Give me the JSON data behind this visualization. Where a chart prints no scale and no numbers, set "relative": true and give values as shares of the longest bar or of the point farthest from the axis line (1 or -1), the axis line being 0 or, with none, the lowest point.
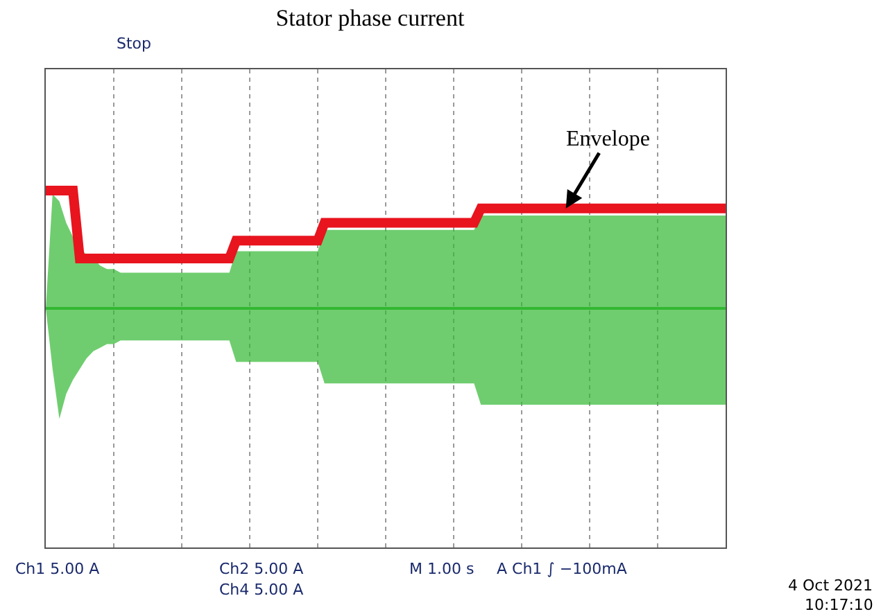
{
  "chart_data": {
    "type": "line",
    "title": "Stator phase current",
    "relative": true,
    "categories": [
      null,
      null,
      null,
      null,
      null,
      null,
      null,
      null,
      null,
      null,
      null,
      null,
      null,
      null,
      null,
      null,
      null,
      null,
      null,
      null,
      null,
      null,
      null,
      null,
      null,
      null,
      null,
      null,
      null,
      null,
      null,
      null,
      null,
      null,
      null,
      null,
      null,
      null,
      null,
      null,
      null,
      null,
      null,
      null,
      null,
      null,
      null,
      null,
      null,
      null,
      null,
      null,
      null,
      null,
      null,
      null,
      null,
      null,
      null,
      null,
      null,
      null,
      null,
      null,
      null,
      null,
      null,
      null,
      null,
      null,
      null,
      null,
      null,
      null,
      null,
      null,
      null,
      null,
      null,
      null,
      null,
      null,
      null,
      null,
      null,
      null,
      null,
      null,
      null,
      null,
      null,
      null,
      null,
      null,
      null,
      null,
      null,
      null,
      null,
      null,
      null
    ],
    "grid": "x",
    "series": [
      {
        "color": "#32b832",
        "values": [
          0.67,
          0.67,
          0.67,
          0.67,
          0.67,
          0.67,
          0.67,
          0.67,
          0.67,
          0.67,
          0.67,
          0.67,
          0.67,
          0.67,
          0.67,
          0.67,
          0.67,
          0.67,
          0.67,
          0.67,
          0.67,
          0.67,
          0.67,
          0.67,
          0.67,
          0.67,
          0.67,
          0.67,
          0.67,
          0.67,
          0.67,
          0.67,
          0.67,
          0.67,
          0.67,
          0.67,
          0.67,
          0.67,
          0.67,
          0.67,
          0.67,
          0.67,
          0.67,
          0.67,
          0.67,
          0.67,
          0.67,
          0.67,
          0.67,
          0.67,
          0.67,
          0.67,
          0.67,
          0.67,
          0.67,
          0.67,
          0.67,
          0.67,
          0.67,
          0.67,
          0.67,
          0.67,
          0.67,
          0.67,
          0.67,
          0.67,
          0.67,
          0.67,
          0.67,
          0.67,
          0.67,
          0.67,
          0.67,
          0.67,
          0.67,
          0.67,
          0.67,
          0.67,
          0.67,
          0.67,
          0.67,
          0.67,
          0.67,
          0.67,
          0.67,
          0.67,
          0.67,
          0.67,
          0.67,
          0.67,
          0.67,
          0.67,
          0.67,
          0.67,
          0.67,
          0.67,
          0.67,
          0.67,
          0.67,
          0.67,
          0.67
        ],
        "upper": [
          0.67,
          0.99,
          0.97,
          0.91,
          0.87,
          0.84,
          0.82,
          0.81,
          0.79,
          0.78,
          0.78,
          0.77,
          0.77,
          0.77,
          0.77,
          0.77,
          0.77,
          0.77,
          0.77,
          0.77,
          0.77,
          0.77,
          0.77,
          0.77,
          0.77,
          0.77,
          0.77,
          0.77,
          0.83,
          0.83,
          0.83,
          0.83,
          0.83,
          0.83,
          0.83,
          0.83,
          0.83,
          0.83,
          0.83,
          0.83,
          0.83,
          0.89,
          0.89,
          0.89,
          0.89,
          0.89,
          0.89,
          0.89,
          0.89,
          0.89,
          0.89,
          0.89,
          0.89,
          0.89,
          0.89,
          0.89,
          0.89,
          0.89,
          0.89,
          0.89,
          0.89,
          0.89,
          0.89,
          0.89,
          0.93,
          0.93,
          0.93,
          0.93,
          0.93,
          0.93,
          0.93,
          0.93,
          0.93,
          0.93,
          0.93,
          0.93,
          0.93,
          0.93,
          0.93,
          0.93,
          0.93,
          0.93,
          0.93,
          0.93,
          0.93,
          0.93,
          0.93,
          0.93,
          0.93,
          0.93,
          0.93,
          0.93,
          0.93,
          0.93,
          0.93,
          0.93,
          0.93,
          0.93,
          0.93,
          0.93,
          0.93
        ],
        "lower": [
          0.67,
          0.5,
          0.36,
          0.43,
          0.47,
          0.5,
          0.53,
          0.55,
          0.56,
          0.57,
          0.57,
          0.58,
          0.58,
          0.58,
          0.58,
          0.58,
          0.58,
          0.58,
          0.58,
          0.58,
          0.58,
          0.58,
          0.58,
          0.58,
          0.58,
          0.58,
          0.58,
          0.58,
          0.52,
          0.52,
          0.52,
          0.52,
          0.52,
          0.52,
          0.52,
          0.52,
          0.52,
          0.52,
          0.52,
          0.52,
          0.52,
          0.46,
          0.46,
          0.46,
          0.46,
          0.46,
          0.46,
          0.46,
          0.46,
          0.46,
          0.46,
          0.46,
          0.46,
          0.46,
          0.46,
          0.46,
          0.46,
          0.46,
          0.46,
          0.46,
          0.46,
          0.46,
          0.46,
          0.46,
          0.4,
          0.4,
          0.4,
          0.4,
          0.4,
          0.4,
          0.4,
          0.4,
          0.4,
          0.4,
          0.4,
          0.4,
          0.4,
          0.4,
          0.4,
          0.4,
          0.4,
          0.4,
          0.4,
          0.4,
          0.4,
          0.4,
          0.4,
          0.4,
          0.4,
          0.4,
          0.4,
          0.4,
          0.4,
          0.4,
          0.4,
          0.4,
          0.4,
          0.4,
          0.4,
          0.4,
          0.4
        ]
      },
      {
        "color": "#e8141e",
        "values": [
          1,
          1,
          1,
          1,
          1,
          0.81,
          0.81,
          0.81,
          0.81,
          0.81,
          0.81,
          0.81,
          0.81,
          0.81,
          0.81,
          0.81,
          0.81,
          0.81,
          0.81,
          0.81,
          0.81,
          0.81,
          0.81,
          0.81,
          0.81,
          0.81,
          0.81,
          0.81,
          0.86,
          0.86,
          0.86,
          0.86,
          0.86,
          0.86,
          0.86,
          0.86,
          0.86,
          0.86,
          0.86,
          0.86,
          0.86,
          0.91,
          0.91,
          0.91,
          0.91,
          0.91,
          0.91,
          0.91,
          0.91,
          0.91,
          0.91,
          0.91,
          0.91,
          0.91,
          0.91,
          0.91,
          0.91,
          0.91,
          0.91,
          0.91,
          0.91,
          0.91,
          0.91,
          0.91,
          0.95,
          0.95,
          0.95,
          0.95,
          0.95,
          0.95,
          0.95,
          0.95,
          0.95,
          0.95,
          0.95,
          0.95,
          0.95,
          0.95,
          0.95,
          0.95,
          0.95,
          0.95,
          0.95,
          0.95,
          0.95,
          0.95,
          0.95,
          0.95,
          0.95,
          0.95,
          0.95,
          0.95,
          0.95,
          0.95,
          0.95,
          0.95,
          0.95,
          0.95,
          0.95,
          0.95,
          0.95
        ]
      }
    ],
    "annotations": [
      {
        "text": "Envelope",
        "y": 0.95
      },
      "Stop",
      "Ch1 5.00 A",
      "Ch2 5.00 A",
      "Ch4 5.00 A",
      "M 1.00 s",
      "A Ch1 ∫ −100mA",
      "4 Oct 2021",
      "10:17:10"
    ]
  }
}
